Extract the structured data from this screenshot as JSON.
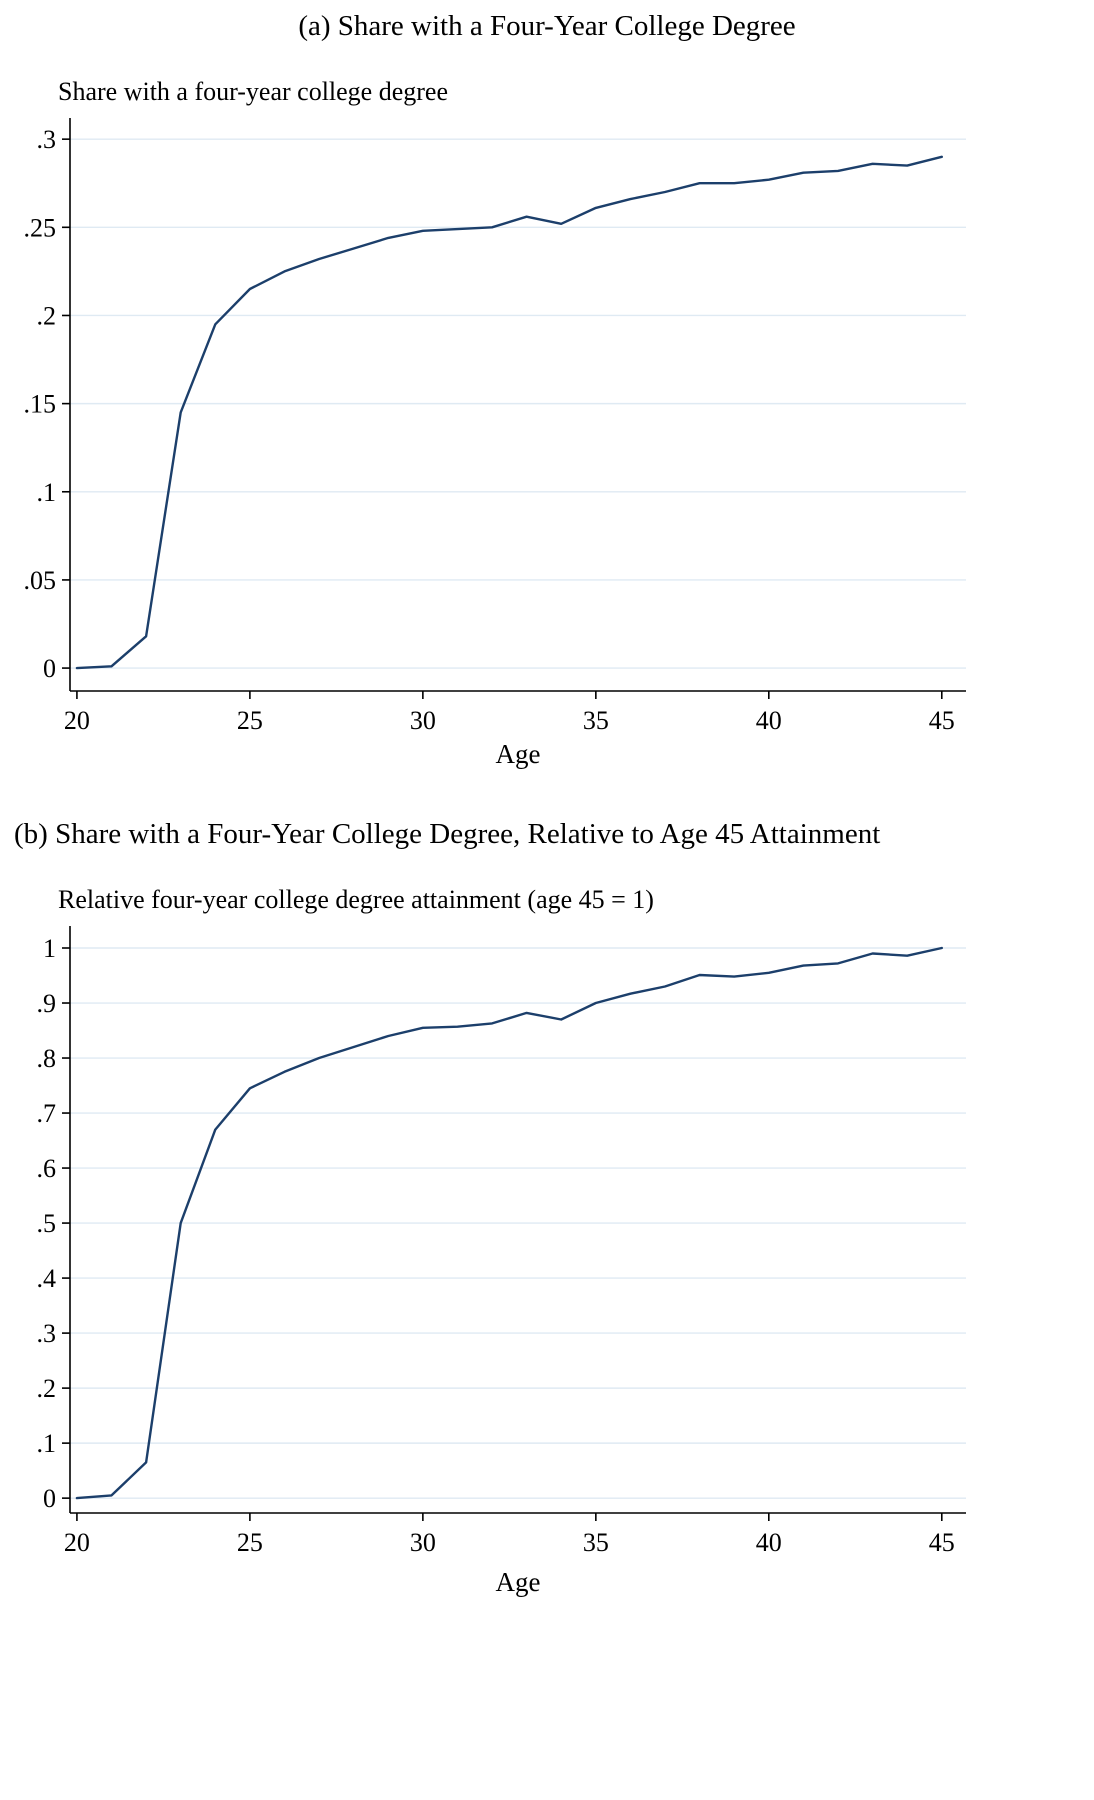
{
  "chart_data": [
    {
      "type": "line",
      "panel_label": "(a) Share with a Four-Year College Degree",
      "title": "Share with a four-year college degree",
      "xlabel": "Age",
      "x": [
        20,
        21,
        22,
        23,
        24,
        25,
        26,
        27,
        28,
        29,
        30,
        31,
        32,
        33,
        34,
        35,
        36,
        37,
        38,
        39,
        40,
        41,
        42,
        43,
        44,
        45
      ],
      "y": [
        0.0,
        0.001,
        0.018,
        0.145,
        0.195,
        0.215,
        0.225,
        0.232,
        0.238,
        0.244,
        0.248,
        0.249,
        0.25,
        0.256,
        0.252,
        0.261,
        0.266,
        0.27,
        0.275,
        0.275,
        0.277,
        0.281,
        0.282,
        0.286,
        0.285,
        0.29
      ],
      "xlim": [
        19.8,
        45.7
      ],
      "ylim": [
        -0.013,
        0.312
      ],
      "xticks": [
        20,
        25,
        30,
        35,
        40,
        45
      ],
      "xtick_labels": [
        "20",
        "25",
        "30",
        "35",
        "40",
        "45"
      ],
      "yticks": [
        0,
        0.05,
        0.1,
        0.15,
        0.2,
        0.25,
        0.3
      ],
      "ytick_labels": [
        "0",
        ".05",
        ".1",
        ".15",
        ".2",
        ".25",
        ".3"
      ],
      "grid": true,
      "legend": "none",
      "line_color": "#1c3f6b",
      "grid_color": "#dfeaf3",
      "axis_color": "#000000",
      "margins": {
        "l": 58,
        "r": 116,
        "t": 8,
        "b": 79
      }
    },
    {
      "type": "line",
      "panel_label": "(b) Share with a Four-Year College Degree, Relative to Age 45 Attainment",
      "title": "Relative four-year college degree attainment (age 45 = 1)",
      "xlabel": "Age",
      "x": [
        20,
        21,
        22,
        23,
        24,
        25,
        26,
        27,
        28,
        29,
        30,
        31,
        32,
        33,
        34,
        35,
        36,
        37,
        38,
        39,
        40,
        41,
        42,
        43,
        44,
        45
      ],
      "y": [
        0.0,
        0.005,
        0.065,
        0.5,
        0.67,
        0.745,
        0.775,
        0.8,
        0.82,
        0.84,
        0.855,
        0.857,
        0.863,
        0.882,
        0.87,
        0.9,
        0.917,
        0.93,
        0.951,
        0.948,
        0.955,
        0.968,
        0.972,
        0.99,
        0.986,
        1.0
      ],
      "xlim": [
        19.8,
        45.7
      ],
      "ylim": [
        -0.027,
        1.04
      ],
      "xticks": [
        20,
        25,
        30,
        35,
        40,
        45
      ],
      "xtick_labels": [
        "20",
        "25",
        "30",
        "35",
        "40",
        "45"
      ],
      "yticks": [
        0,
        0.1,
        0.2,
        0.3,
        0.4,
        0.5,
        0.6,
        0.7,
        0.8,
        0.9,
        1
      ],
      "ytick_labels": [
        "0",
        ".1",
        ".2",
        ".3",
        ".4",
        ".5",
        ".6",
        ".7",
        ".8",
        ".9",
        "1"
      ],
      "grid": true,
      "legend": "none",
      "line_color": "#1c3f6b",
      "grid_color": "#dfeaf3",
      "axis_color": "#000000",
      "margins": {
        "l": 58,
        "r": 116,
        "t": 8,
        "b": 85
      }
    }
  ]
}
